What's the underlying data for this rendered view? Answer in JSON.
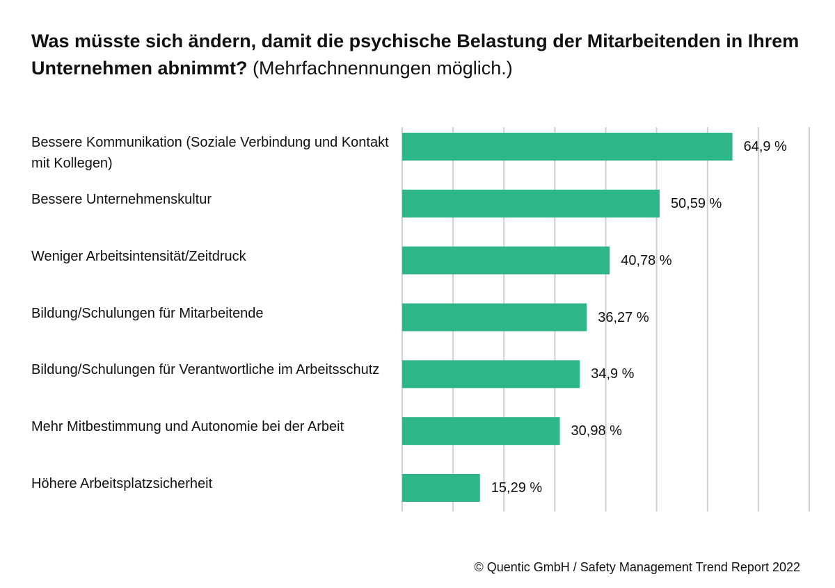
{
  "chart_data": {
    "type": "barh",
    "title": "Was müsste sich ändern, damit die psychische Belastung der Mitarbeitenden in Ihrem Unternehmen abnimmt?",
    "subtitle": "(Mehrfachnennungen möglich.)",
    "categories": [
      "Bessere Kommunikation (Soziale Verbindung und Kontakt mit Kollegen)",
      "Bessere Unternehmenskultur",
      "Weniger Arbeitsintensität/Zeitdruck",
      "Bildung/Schulungen für Mitarbeitende",
      "Bildung/Schulungen für Verantwortliche im Arbeitsschutz",
      "Mehr Mitbestimmung und Autonomie bei der Arbeit",
      "Höhere Arbeitsplatzsicherheit"
    ],
    "values": [
      64.9,
      50.59,
      40.78,
      36.27,
      34.9,
      30.98,
      15.29
    ],
    "value_labels": [
      "64,9 %",
      "50,59 %",
      "40,78 %",
      "36,27 %",
      "34,9 %",
      "30,98 %",
      "15,29 %"
    ],
    "color": "#2fb686",
    "xlim": [
      0,
      80
    ],
    "xticks": [
      0,
      10,
      20,
      30,
      40,
      50,
      60,
      70,
      80
    ],
    "grid": true,
    "source": "© Quentic GmbH / Safety Management Trend Report 2022"
  }
}
